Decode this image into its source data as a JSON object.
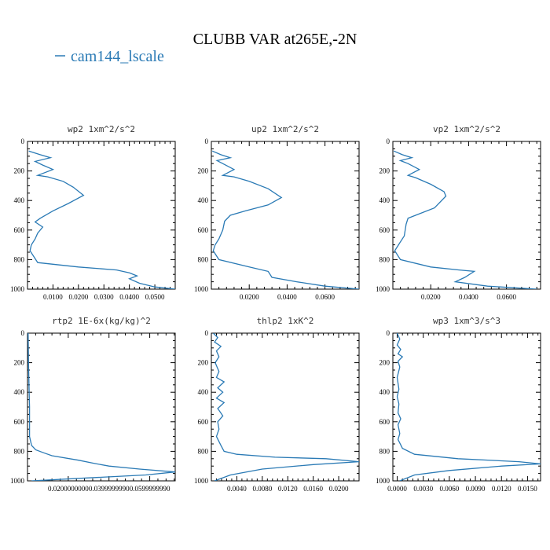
{
  "figure": {
    "title": "CLUBB VAR at265E,-2N",
    "legend_label": "cam144_lscale",
    "legend_color": "#2a7ab5",
    "line_color": "#2a7ab5",
    "axis_color": "#000000"
  },
  "chart_data": [
    {
      "type": "line",
      "title": "wp2   1xm^2/s^2",
      "ylim": [
        1000,
        0
      ],
      "yticks": [
        0,
        200,
        400,
        600,
        800,
        1000
      ],
      "xlim": [
        0.0,
        0.058
      ],
      "xticks": [
        0.01,
        0.02,
        0.03,
        0.04,
        0.05
      ],
      "xticklabels": [
        "0.0100",
        "0.0200",
        "0.0300",
        "0.0400",
        "0.0500"
      ],
      "series": [
        {
          "name": "cam144_lscale",
          "x": [
            0.0005,
            0.005,
            0.009,
            0.003,
            0.006,
            0.01,
            0.004,
            0.008,
            0.014,
            0.018,
            0.022,
            0.016,
            0.01,
            0.005,
            0.003,
            0.006,
            0.004,
            0.003,
            0.0015,
            0.001,
            0.004,
            0.02,
            0.035,
            0.04,
            0.043,
            0.04,
            0.044,
            0.05,
            0.058
          ],
          "y": [
            65,
            90,
            110,
            135,
            160,
            190,
            230,
            240,
            270,
            310,
            365,
            420,
            470,
            520,
            545,
            580,
            620,
            660,
            700,
            740,
            820,
            850,
            870,
            890,
            910,
            930,
            960,
            985,
            1000
          ]
        }
      ]
    },
    {
      "type": "line",
      "title": "up2   1xm^2/s^2",
      "ylim": [
        1000,
        0
      ],
      "yticks": [
        0,
        200,
        400,
        600,
        800,
        1000
      ],
      "xlim": [
        0.0,
        0.078
      ],
      "xticks": [
        0.02,
        0.04,
        0.06
      ],
      "xticklabels": [
        "0.0200",
        "0.0400",
        "0.0600"
      ],
      "series": [
        {
          "name": "cam144_lscale",
          "x": [
            0.0005,
            0.005,
            0.01,
            0.003,
            0.006,
            0.012,
            0.006,
            0.012,
            0.02,
            0.03,
            0.037,
            0.03,
            0.018,
            0.01,
            0.007,
            0.006,
            0.004,
            0.002,
            0.001,
            0.004,
            0.02,
            0.03,
            0.032,
            0.045,
            0.06,
            0.078
          ],
          "y": [
            65,
            90,
            110,
            130,
            150,
            190,
            230,
            240,
            270,
            320,
            380,
            430,
            470,
            500,
            540,
            600,
            660,
            700,
            740,
            800,
            850,
            880,
            920,
            950,
            980,
            1000
          ]
        }
      ]
    },
    {
      "type": "line",
      "title": "vp2   1xm^2/s^2",
      "ylim": [
        1000,
        0
      ],
      "yticks": [
        0,
        200,
        400,
        600,
        800,
        1000
      ],
      "xlim": [
        0.0,
        0.078
      ],
      "xticks": [
        0.02,
        0.04,
        0.06
      ],
      "xticklabels": [
        "0.0200",
        "0.0400",
        "0.0600"
      ],
      "series": [
        {
          "name": "cam144_lscale",
          "x": [
            0.0005,
            0.005,
            0.01,
            0.004,
            0.008,
            0.014,
            0.008,
            0.012,
            0.02,
            0.027,
            0.028,
            0.022,
            0.012,
            0.008,
            0.007,
            0.006,
            0.003,
            0.001,
            0.004,
            0.02,
            0.035,
            0.043,
            0.038,
            0.033,
            0.05,
            0.076
          ],
          "y": [
            65,
            90,
            110,
            130,
            150,
            190,
            230,
            245,
            290,
            340,
            370,
            450,
            500,
            520,
            560,
            640,
            700,
            740,
            800,
            850,
            870,
            880,
            920,
            950,
            980,
            1000
          ]
        }
      ]
    },
    {
      "type": "line",
      "title": "rtp2   1E-6x(kg/kg)^2",
      "ylim": [
        1000,
        0
      ],
      "yticks": [
        0,
        200,
        400,
        600,
        800,
        1000
      ],
      "xlim": [
        0.0,
        0.0725
      ],
      "xticks": [
        0.02,
        0.04,
        0.06
      ],
      "xticklabels": [
        "0.0200000000",
        "0.0399999990",
        "0.0599999990"
      ],
      "series": [
        {
          "name": "cam144_lscale",
          "x": [
            0.0003,
            0.0005,
            0.0008,
            0.001,
            0.001,
            0.002,
            0.004,
            0.008,
            0.012,
            0.025,
            0.032,
            0.04,
            0.055,
            0.0725,
            0.058,
            0.03,
            0.002
          ],
          "y": [
            0,
            200,
            400,
            500,
            700,
            760,
            790,
            810,
            830,
            860,
            880,
            900,
            920,
            940,
            960,
            980,
            1000
          ]
        }
      ]
    },
    {
      "type": "line",
      "title": "thlp2   1xK^2",
      "ylim": [
        1000,
        0
      ],
      "yticks": [
        0,
        200,
        400,
        600,
        800,
        1000
      ],
      "xlim": [
        0.0,
        0.0232
      ],
      "xticks": [
        0.004,
        0.008,
        0.012,
        0.016,
        0.02
      ],
      "xticklabels": [
        "0.0040",
        "0.0080",
        "0.0120",
        "0.0160",
        "0.0200"
      ],
      "series": [
        {
          "name": "cam144_lscale",
          "x": [
            0.0003,
            0.001,
            0.0005,
            0.0015,
            0.0008,
            0.0012,
            0.0006,
            0.0009,
            0.0012,
            0.0008,
            0.002,
            0.001,
            0.0018,
            0.0008,
            0.002,
            0.001,
            0.0018,
            0.001,
            0.0012,
            0.0008,
            0.0015,
            0.002,
            0.004,
            0.01,
            0.018,
            0.0232,
            0.016,
            0.008,
            0.003,
            0.0005
          ],
          "y": [
            0,
            30,
            60,
            90,
            120,
            160,
            200,
            230,
            260,
            300,
            330,
            370,
            400,
            440,
            470,
            510,
            560,
            600,
            650,
            700,
            760,
            800,
            820,
            840,
            850,
            870,
            890,
            920,
            960,
            1000
          ]
        }
      ]
    },
    {
      "type": "line",
      "title": "wp3   1xm^3/s^3",
      "ylim": [
        1000,
        0
      ],
      "yticks": [
        0,
        200,
        400,
        600,
        800,
        1000
      ],
      "xlim": [
        -0.0005,
        0.0165
      ],
      "xticks": [
        0.0,
        0.003,
        0.006,
        0.009,
        0.012,
        0.015
      ],
      "xticklabels": [
        "0.0000",
        "0.0030",
        "0.0060",
        "0.0090",
        "0.0120",
        "0.0150"
      ],
      "series": [
        {
          "name": "cam144_lscale",
          "x": [
            0.0,
            0.0003,
            0.0,
            0.0004,
            0.0001,
            0.0006,
            0.0001,
            0.0003,
            0.0,
            0.0002,
            0.0,
            0.0002,
            0.0001,
            0.0004,
            0.0001,
            0.0003,
            0.0001,
            0.0006,
            0.002,
            0.007,
            0.014,
            0.0165,
            0.012,
            0.006,
            0.002,
            0.0003
          ],
          "y": [
            0,
            40,
            80,
            110,
            140,
            160,
            190,
            230,
            300,
            380,
            430,
            480,
            540,
            580,
            620,
            680,
            720,
            780,
            820,
            850,
            870,
            885,
            900,
            930,
            960,
            1000
          ]
        }
      ]
    }
  ]
}
